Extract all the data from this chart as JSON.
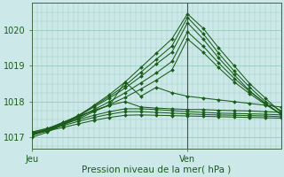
{
  "xlabel": "Pression niveau de la mer( hPa )",
  "background_color": "#cce8e8",
  "grid_color": "#99ccbb",
  "line_color": "#1a5c1a",
  "label_color": "#1a5c1a",
  "ylim": [
    1016.7,
    1020.75
  ],
  "xlim": [
    0,
    48
  ],
  "xtick_positions": [
    0,
    30
  ],
  "xtick_labels": [
    "Jeu",
    "Ven"
  ],
  "vline_x": 30,
  "ytick_positions": [
    1017,
    1018,
    1019,
    1020
  ],
  "series": [
    {
      "points_x": [
        0,
        3,
        6,
        9,
        12,
        15,
        18,
        21,
        24,
        27,
        30,
        33,
        36,
        39,
        42,
        45,
        48
      ],
      "points_y": [
        1017.0,
        1017.15,
        1017.35,
        1017.6,
        1017.9,
        1018.2,
        1018.55,
        1018.95,
        1019.35,
        1019.75,
        1020.45,
        1020.05,
        1019.5,
        1019.0,
        1018.5,
        1018.1,
        1017.7
      ]
    },
    {
      "points_x": [
        0,
        3,
        6,
        9,
        12,
        15,
        18,
        21,
        24,
        27,
        30,
        33,
        36,
        39,
        42,
        45,
        48
      ],
      "points_y": [
        1017.05,
        1017.2,
        1017.4,
        1017.62,
        1017.88,
        1018.15,
        1018.45,
        1018.82,
        1019.18,
        1019.55,
        1020.35,
        1019.9,
        1019.35,
        1018.85,
        1018.4,
        1018.0,
        1017.75
      ]
    },
    {
      "points_x": [
        0,
        3,
        6,
        9,
        12,
        15,
        18,
        21,
        24,
        27,
        30,
        33,
        36,
        39,
        42,
        45,
        48
      ],
      "points_y": [
        1017.1,
        1017.22,
        1017.42,
        1017.6,
        1017.85,
        1018.1,
        1018.38,
        1018.7,
        1019.05,
        1019.38,
        1020.2,
        1019.75,
        1019.22,
        1018.75,
        1018.3,
        1017.95,
        1017.65
      ]
    },
    {
      "points_x": [
        0,
        3,
        6,
        9,
        12,
        15,
        18,
        21,
        24,
        27,
        30,
        33,
        36,
        39,
        42,
        45,
        48
      ],
      "points_y": [
        1017.1,
        1017.2,
        1017.38,
        1017.55,
        1017.78,
        1018.0,
        1018.25,
        1018.52,
        1018.8,
        1019.12,
        1019.95,
        1019.55,
        1019.08,
        1018.65,
        1018.28,
        1017.95,
        1017.65
      ]
    },
    {
      "points_x": [
        0,
        3,
        6,
        9,
        12,
        15,
        18,
        21,
        24,
        27,
        30,
        33,
        36,
        39,
        42,
        45,
        48
      ],
      "points_y": [
        1017.08,
        1017.18,
        1017.35,
        1017.52,
        1017.72,
        1017.92,
        1018.12,
        1018.35,
        1018.6,
        1018.88,
        1019.75,
        1019.38,
        1018.95,
        1018.55,
        1018.22,
        1017.92,
        1017.65
      ]
    },
    {
      "points_x": [
        0,
        3,
        6,
        9,
        12,
        15,
        18,
        21,
        24,
        27,
        30,
        33,
        36,
        39,
        42,
        45,
        48
      ],
      "points_y": [
        1017.1,
        1017.22,
        1017.4,
        1017.58,
        1017.75,
        1017.9,
        1018.55,
        1018.15,
        1018.4,
        1018.25,
        1018.15,
        1018.1,
        1018.05,
        1018.0,
        1017.95,
        1017.9,
        1017.85
      ]
    },
    {
      "points_x": [
        0,
        3,
        6,
        9,
        12,
        15,
        18,
        21,
        24,
        27,
        30,
        33,
        36,
        39,
        42,
        45,
        48
      ],
      "points_y": [
        1017.15,
        1017.25,
        1017.42,
        1017.6,
        1017.75,
        1017.9,
        1018.0,
        1017.85,
        1017.82,
        1017.8,
        1017.78,
        1017.78,
        1017.76,
        1017.75,
        1017.74,
        1017.72,
        1017.7
      ]
    },
    {
      "points_x": [
        0,
        3,
        6,
        9,
        12,
        15,
        18,
        21,
        24,
        27,
        30,
        33,
        36,
        39,
        42,
        45,
        48
      ],
      "points_y": [
        1017.15,
        1017.25,
        1017.38,
        1017.5,
        1017.62,
        1017.72,
        1017.8,
        1017.8,
        1017.78,
        1017.75,
        1017.72,
        1017.7,
        1017.68,
        1017.67,
        1017.66,
        1017.65,
        1017.63
      ]
    },
    {
      "points_x": [
        0,
        3,
        6,
        9,
        12,
        15,
        18,
        21,
        24,
        27,
        30,
        33,
        36,
        39,
        42,
        45,
        48
      ],
      "points_y": [
        1017.12,
        1017.22,
        1017.33,
        1017.45,
        1017.56,
        1017.65,
        1017.72,
        1017.72,
        1017.7,
        1017.68,
        1017.66,
        1017.64,
        1017.63,
        1017.62,
        1017.61,
        1017.6,
        1017.58
      ]
    },
    {
      "points_x": [
        0,
        3,
        6,
        9,
        12,
        15,
        18,
        21,
        24,
        27,
        30,
        33,
        36,
        39,
        42,
        45,
        48
      ],
      "points_y": [
        1017.1,
        1017.18,
        1017.28,
        1017.38,
        1017.48,
        1017.56,
        1017.62,
        1017.63,
        1017.62,
        1017.61,
        1017.6,
        1017.59,
        1017.58,
        1017.57,
        1017.56,
        1017.55,
        1017.54
      ]
    }
  ]
}
